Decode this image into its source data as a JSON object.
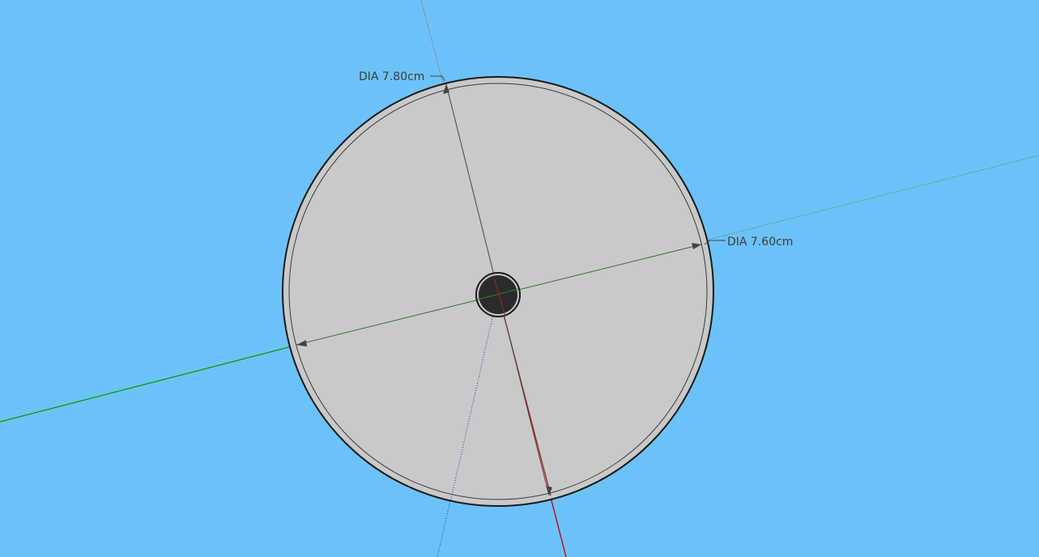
{
  "scene": {
    "background_color": "#6cc2f8",
    "disc_fill": "#c9c9c9",
    "disc_outline": "#1a1a1a",
    "hub_fill": "#2b2b2b",
    "axes": {
      "red": "#c00000",
      "green": "#009900",
      "blue": "#1a1aa0"
    }
  },
  "dimensions": [
    {
      "label": "DIA 7.80cm"
    },
    {
      "label": "DIA 7.60cm"
    }
  ]
}
